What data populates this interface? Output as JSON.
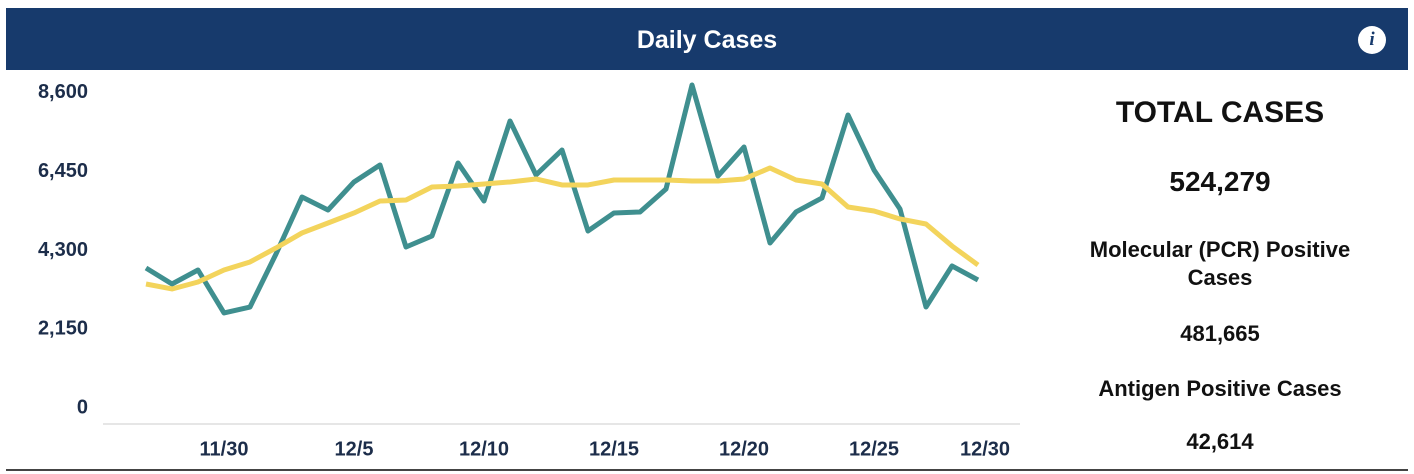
{
  "header": {
    "title": "Daily Cases"
  },
  "chart_data": {
    "type": "line",
    "categories": [
      null,
      null,
      null,
      "11/30",
      null,
      null,
      null,
      null,
      "12/5",
      null,
      null,
      null,
      null,
      "12/10",
      null,
      null,
      null,
      null,
      "12/15",
      null,
      null,
      null,
      null,
      "12/20",
      null,
      null,
      null,
      null,
      "12/25",
      null,
      null,
      null,
      null,
      "12/30"
    ],
    "series": [
      {
        "color": "#3f8f8f",
        "values": [
          3822,
          3385,
          3767,
          2594,
          2757,
          4204,
          5760,
          5405,
          6170,
          6634,
          4395,
          4696,
          6689,
          5651,
          7835,
          6361,
          7043,
          4832,
          5324,
          5351,
          5979,
          8818,
          6334,
          7125,
          4504,
          5351,
          5733,
          7999,
          6497,
          5433,
          2757,
          3877,
          3494,
          null
        ]
      },
      {
        "color": "#f3d45c",
        "values": [
          3385,
          3249,
          3440,
          3767,
          3986,
          4368,
          4778,
          5050,
          5324,
          5651,
          5679,
          6033,
          6061,
          6115,
          6170,
          6252,
          6088,
          6088,
          6224,
          6224,
          6224,
          6197,
          6197,
          6252,
          6552,
          6224,
          6115,
          5487,
          5378,
          5160,
          5023,
          4423,
          3904,
          null
        ]
      }
    ],
    "ylim": [
      0,
      9000
    ],
    "yticks": [
      0,
      {
        "value": 2150,
        "label": "2,150"
      },
      {
        "value": 4300,
        "label": "4,300"
      },
      {
        "value": 6450,
        "label": "6,450"
      },
      {
        "value": 8600,
        "label": "8,600"
      }
    ],
    "grid": false
  },
  "side": {
    "total_title": "TOTAL CASES",
    "total_value": "524,279",
    "pcr_title": "Molecular (PCR) Positive Cases",
    "pcr_value": "481,665",
    "antigen_title": "Antigen Positive Cases",
    "antigen_value": "42,614"
  }
}
